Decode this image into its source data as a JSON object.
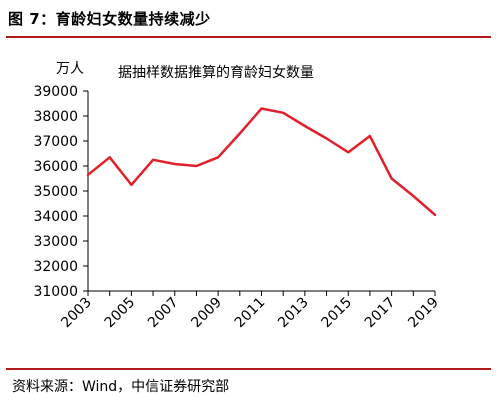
{
  "figure": {
    "title": "图 7：育龄妇女数量持续减少",
    "source": "资料来源：Wind，中信证券研究部"
  },
  "chart_data": {
    "type": "line",
    "title": "据抽样数据推算的育龄妇女数量",
    "ylabel": "万人",
    "xlabel": "",
    "ylim": [
      31000,
      39000
    ],
    "yticks": [
      31000,
      32000,
      33000,
      34000,
      35000,
      36000,
      37000,
      38000,
      39000
    ],
    "xticks": [
      "2003",
      "2005",
      "2007",
      "2009",
      "2011",
      "2013",
      "2015",
      "2017",
      "2019"
    ],
    "grid": false,
    "color": "#e0202a",
    "series": [
      {
        "x": [
          2003,
          2004,
          2005,
          2006,
          2007,
          2008,
          2009,
          2010,
          2011,
          2012,
          2013,
          2014,
          2015,
          2016,
          2017,
          2018,
          2019
        ],
        "values": [
          35650,
          36350,
          35250,
          36250,
          36080,
          36000,
          36350,
          37300,
          38300,
          38130,
          37600,
          37100,
          36550,
          37200,
          35500,
          34800,
          34050
        ]
      }
    ]
  }
}
